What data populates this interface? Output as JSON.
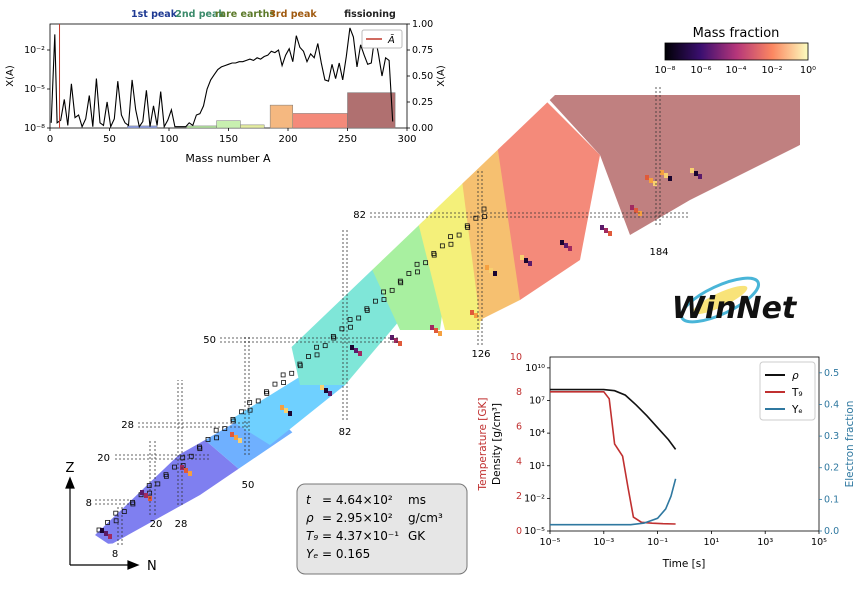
{
  "colors": {
    "ni_wedge_1": "#7f7ff0",
    "ni_wedge_2": "#6fb0ff",
    "ni_wedge_3": "#7fe6d8",
    "ni_wedge_4": "#a8f0a0",
    "ni_wedge_5": "#f4f07a",
    "ni_wedge_6": "#f6c070",
    "ni_wedge_7": "#f48a7a",
    "ni_wedge_8": "#c08080",
    "region_1st": "#1f3a93",
    "region_2nd": "#3a8a6a",
    "region_rare": "#5c7a2a",
    "region_3rd": "#a05a10",
    "region_fission": "#222222",
    "temp": "#c03030",
    "density": "#111111",
    "ye": "#2f78a0",
    "info_box_bg": "#e6e6e6"
  },
  "peaks": {
    "first": "1st peak",
    "second": "2nd peak",
    "rare": "rare earths",
    "third": "3rd peak",
    "fission": "fissioning"
  },
  "legend_abar": "Ā",
  "colorbar": {
    "title": "Mass fraction",
    "ticks": [
      "10⁻⁸",
      "10⁻⁶",
      "10⁻⁴",
      "10⁻²",
      "10⁰"
    ]
  },
  "magic": {
    "n_labels": [
      "8",
      "20",
      "28",
      "50",
      "82",
      "126",
      "184"
    ],
    "z_labels": [
      "8",
      "20",
      "28",
      "50",
      "82"
    ]
  },
  "axes_labels": {
    "z": "Z",
    "n": "N"
  },
  "logo": "WinNet",
  "info": {
    "t_sym": "t",
    "t_val": "= 4.64×10²",
    "t_unit": "ms",
    "rho_sym": "ρ",
    "rho_val": "= 2.95×10²",
    "rho_unit": "g/cm³",
    "t9_sym": "T₉",
    "t9_val": "= 4.37×10⁻¹",
    "t9_unit": "GK",
    "ye_sym": "Yₑ",
    "ye_val": "= 0.165"
  },
  "chart_data": [
    {
      "type": "line",
      "title": "",
      "xlabel": "Mass number A",
      "ylabel": "X(A)",
      "ylabel_right": "X(A)",
      "xlim": [
        0,
        300
      ],
      "ylim_log": [
        -8,
        0
      ],
      "ylim_right": [
        0,
        1
      ],
      "x_ticks": [
        "0",
        "50",
        "100",
        "150",
        "200",
        "250",
        "300"
      ],
      "y_ticks": [
        "10⁻⁸",
        "10⁻⁵",
        "10⁻²"
      ],
      "y_ticks_right": [
        "0.00",
        "0.25",
        "0.50",
        "0.75",
        "1.00"
      ],
      "series": [
        {
          "name": "Ā",
          "note": "vertical red marker",
          "x": [
            8
          ]
        },
        {
          "name": "",
          "x": [
            1,
            4,
            6,
            9,
            12,
            15,
            18,
            21,
            24,
            27,
            30,
            33,
            36,
            39,
            42,
            45,
            48,
            51,
            54,
            57,
            60,
            63,
            66,
            69,
            72,
            75,
            78,
            81,
            84,
            87,
            90,
            93,
            96,
            99,
            102,
            105,
            108,
            111,
            114,
            117,
            120,
            123,
            126,
            129,
            132,
            135,
            138,
            141,
            144,
            147,
            150,
            153,
            156,
            159,
            162,
            165,
            168,
            171,
            174,
            177,
            180,
            183,
            186,
            189,
            192,
            195,
            198,
            201,
            204,
            207,
            210,
            213,
            216,
            219,
            222,
            225,
            228,
            231,
            234,
            237,
            240,
            243,
            246,
            249,
            252,
            255,
            258,
            261,
            264,
            267,
            270,
            273,
            276,
            279,
            282,
            285,
            288
          ],
          "log10_values": [
            -7.6,
            -0.8,
            -7.6,
            -7.4,
            -5.8,
            -7.8,
            -4.6,
            -7.2,
            -7.0,
            -7.9,
            -7.3,
            -5.5,
            -7.9,
            -4.2,
            -7.6,
            -7.8,
            -6.0,
            -7.9,
            -7.3,
            -4.4,
            -7.0,
            -7.6,
            -7.8,
            -4.3,
            -6.6,
            -7.9,
            -7.5,
            -5.1,
            -7.9,
            -6.3,
            -7.8,
            -5.2,
            -7.9,
            -7.4,
            -6.6,
            -7.9,
            -7.9,
            -7.9,
            -7.9,
            -7.6,
            -7.8,
            -7.0,
            -6.9,
            -6.3,
            -5.0,
            -4.3,
            -3.9,
            -3.5,
            -3.3,
            -3.2,
            -3.1,
            -3.0,
            -3.0,
            -2.9,
            -2.9,
            -2.8,
            -2.7,
            -2.8,
            -2.6,
            -2.7,
            -2.5,
            -2.4,
            -2.1,
            -2.2,
            -2.0,
            -3.2,
            -2.4,
            -1.9,
            -2.9,
            -0.9,
            -1.8,
            -2.1,
            -2.9,
            -2.3,
            -2.6,
            -1.5,
            -3.0,
            -4.3,
            -4.4,
            -3.1,
            -4.2,
            -3.0,
            -4.3,
            -2.5,
            -0.3,
            -1.0,
            -3.3,
            -1.6,
            -2.4,
            -3.1,
            -3.0,
            -0.9,
            -2.3,
            -4.0,
            -2.6,
            -2.8,
            -7.5
          ]
        }
      ],
      "regions": [
        {
          "label": "1st peak",
          "a_min": 65,
          "a_max": 90,
          "fraction": 0.02
        },
        {
          "label": "2nd peak",
          "a_min": 115,
          "a_max": 140,
          "fraction": 0.02
        },
        {
          "label": "2nd peak",
          "a_min": 140,
          "a_max": 160,
          "fraction": 0.07
        },
        {
          "label": "rare earths",
          "a_min": 160,
          "a_max": 180,
          "fraction": 0.03
        },
        {
          "label": "3rd peak",
          "a_min": 185,
          "a_max": 204,
          "fraction": 0.22
        },
        {
          "label": "",
          "a_min": 204,
          "a_max": 250,
          "fraction": 0.14
        },
        {
          "label": "fissioning",
          "a_min": 250,
          "a_max": 290,
          "fraction": 0.34
        }
      ]
    },
    {
      "type": "line",
      "title": "",
      "xlabel": "Time [s]",
      "ylabel": "Density [g/cm³]",
      "ylabel_left_outer": "Temperature [GK]",
      "ylabel_right": "Electron fraction",
      "x_log_range": [
        -5,
        5
      ],
      "x_ticks": [
        "10⁻⁵",
        "10⁻³",
        "10⁻¹",
        "10¹",
        "10³",
        "10⁵"
      ],
      "density_ticks": [
        "10⁻⁵",
        "10⁻²",
        "10¹",
        "10⁴",
        "10⁷",
        "10¹⁰"
      ],
      "temp_ticks": [
        "0",
        "2",
        "4",
        "6",
        "8",
        "10"
      ],
      "ye_ticks": [
        "0.0",
        "0.1",
        "0.2",
        "0.3",
        "0.4",
        "0.5"
      ],
      "legend": [
        "ρ",
        "T₉",
        "Yₑ"
      ],
      "series": [
        {
          "name": "ρ",
          "log10_time": [
            -5,
            -3,
            -2.6,
            -2.2,
            -1.8,
            -1.4,
            -1.0,
            -0.6,
            -0.33
          ],
          "log10_values": [
            8.0,
            8.0,
            7.9,
            7.5,
            6.6,
            5.6,
            4.5,
            3.4,
            2.5
          ]
        },
        {
          "name": "T₉",
          "log10_time": [
            -5,
            -3,
            -2.8,
            -2.6,
            -2.3,
            -2.1,
            -1.9,
            -1.6,
            -1.2,
            -0.8,
            -0.33
          ],
          "values": [
            8.0,
            8.0,
            7.6,
            5.0,
            4.3,
            2.5,
            0.8,
            0.5,
            0.45,
            0.42,
            0.4
          ]
        },
        {
          "name": "Yₑ",
          "log10_time": [
            -5,
            -2.0,
            -1.5,
            -1.0,
            -0.7,
            -0.5,
            -0.33
          ],
          "values": [
            0.02,
            0.02,
            0.025,
            0.04,
            0.07,
            0.11,
            0.165
          ]
        }
      ]
    }
  ]
}
